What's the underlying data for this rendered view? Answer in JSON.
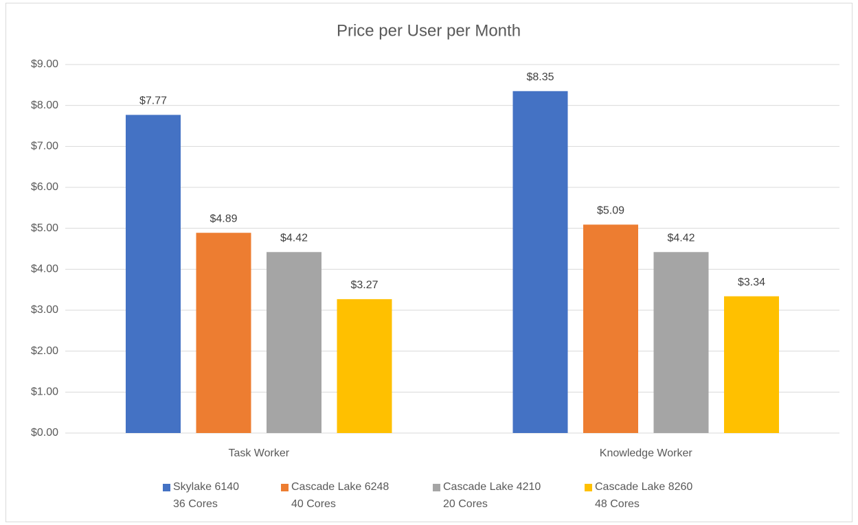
{
  "chart_data": {
    "type": "bar",
    "title": "Price per User per Month",
    "categories": [
      "Task Worker",
      "Knowledge Worker"
    ],
    "series": [
      {
        "name": "Skylake 6140\n36 Cores",
        "color": "#4472c4",
        "values": [
          7.77,
          8.35
        ],
        "value_labels": [
          "$7.77",
          "$8.35"
        ]
      },
      {
        "name": "Cascade Lake 6248\n40 Cores",
        "color": "#ed7d31",
        "values": [
          4.89,
          5.09
        ],
        "value_labels": [
          "$4.89",
          "$5.09"
        ]
      },
      {
        "name": "Cascade Lake 4210\n20 Cores",
        "color": "#a5a5a5",
        "values": [
          4.42,
          4.42
        ],
        "value_labels": [
          "$4.42",
          "$4.42"
        ]
      },
      {
        "name": "Cascade Lake 8260\n48 Cores",
        "color": "#ffc000",
        "values": [
          3.27,
          3.34
        ],
        "value_labels": [
          "$3.27",
          "$3.34"
        ]
      }
    ],
    "ylim": [
      0,
      9
    ],
    "yticks": [
      {
        "value": 0,
        "label": "$0.00"
      },
      {
        "value": 1,
        "label": "$1.00"
      },
      {
        "value": 2,
        "label": "$2.00"
      },
      {
        "value": 3,
        "label": "$3.00"
      },
      {
        "value": 4,
        "label": "$4.00"
      },
      {
        "value": 5,
        "label": "$5.00"
      },
      {
        "value": 6,
        "label": "$6.00"
      },
      {
        "value": 7,
        "label": "$7.00"
      },
      {
        "value": 8,
        "label": "$8.00"
      },
      {
        "value": 9,
        "label": "$9.00"
      }
    ],
    "grid": true,
    "legend": "bottom"
  }
}
